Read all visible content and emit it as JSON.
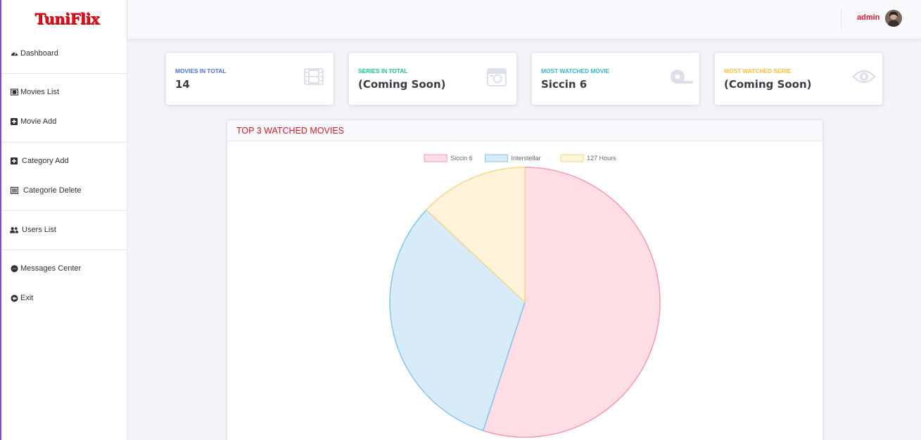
{
  "app": {
    "logo_text": "TuniFlix"
  },
  "sidebar": {
    "items": [
      {
        "label": "Dashboard",
        "icon": "tachometer-icon"
      },
      {
        "label": "Movies List",
        "icon": "film-icon"
      },
      {
        "label": "Movie Add",
        "icon": "plus-square-icon"
      },
      {
        "label": "Category Add",
        "icon": "plus-square-icon"
      },
      {
        "label": "Categorie Delete",
        "icon": "list-alt-icon"
      },
      {
        "label": "Users List",
        "icon": "users-icon"
      },
      {
        "label": "Messages Center",
        "icon": "messenger-icon"
      },
      {
        "label": "Exit",
        "icon": "arrow-circle-left-icon"
      }
    ]
  },
  "topbar": {
    "user_name": "admin"
  },
  "cards": [
    {
      "label": "Movies in total",
      "value": "14",
      "color": "#4e73df",
      "icon": "film-icon"
    },
    {
      "label": "Series in total",
      "value": "(Coming Soon)",
      "color": "#1cc88a",
      "icon": "camera-icon"
    },
    {
      "label": "Most watched movie",
      "value": "Siccin 6",
      "color": "#36b9cc",
      "icon": "tape-icon"
    },
    {
      "label": "Most watched serie",
      "value": "(Coming Soon)",
      "color": "#f6c23e",
      "icon": "eye-icon"
    }
  ],
  "chart_panel": {
    "title": "Top 3 watched movies"
  },
  "chart_data": {
    "type": "pie",
    "categories": [
      "Siccin 6",
      "Interstellar",
      "127 Hours"
    ],
    "values": [
      55,
      32,
      13
    ],
    "colors": [
      "#ffdde5",
      "#d7ebf9",
      "#fff3da"
    ],
    "border_colors": [
      "#f39bb0",
      "#86c4ee",
      "#f8d68a"
    ],
    "legend": "top"
  }
}
